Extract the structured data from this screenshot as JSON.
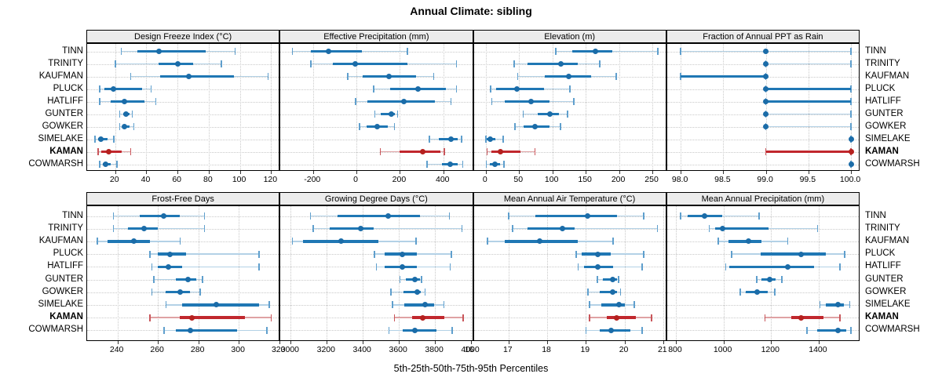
{
  "title": "Annual Climate: sibling",
  "footer": "5th-25th-50th-75th-95th Percentiles",
  "stations": [
    "TINN",
    "TRINITY",
    "KAUFMAN",
    "PLUCK",
    "HATLIFF",
    "GUNTER",
    "GOWKER",
    "SIMELAKE",
    "KAMAN",
    "COWMARSH"
  ],
  "highlight_station": "KAMAN",
  "colors": {
    "blue_main": "#1f77b4",
    "blue_cap": "#5f9fcd",
    "blue_light": "#b3d1e6",
    "blue_dot": "#1b6ca8",
    "red_main": "#c1272d",
    "red_cap": "#c9565b",
    "red_light": "#dfa2a4",
    "red_dot": "#b5211e",
    "strip_bg": "#ececec",
    "panel_border": "#000000",
    "grid": "#c9c9c9",
    "text": "#000000"
  },
  "chart_data": [
    {
      "type": "dotplot-percentiles",
      "title": "Design Freeze Index (°C)",
      "row": 0,
      "col": 0,
      "xlim": [
        2,
        126
      ],
      "ticks": [
        20,
        40,
        60,
        80,
        100,
        120
      ],
      "tick_labels": [
        "20",
        "40",
        "60",
        "80",
        "100",
        "120"
      ],
      "percentiles": [
        "5th",
        "25th",
        "50th",
        "75th",
        "95th"
      ],
      "values": [
        [
          24,
          34,
          48,
          78,
          97
        ],
        [
          20,
          48,
          60,
          70,
          88
        ],
        [
          30,
          49,
          67,
          96,
          118
        ],
        [
          10,
          13,
          19,
          37,
          43
        ],
        [
          10,
          17,
          26,
          39,
          46
        ],
        [
          23,
          25,
          27,
          29,
          31
        ],
        [
          23,
          25,
          26,
          29,
          32
        ],
        [
          7,
          9,
          11,
          15,
          19
        ],
        [
          9,
          11,
          16,
          24,
          30
        ],
        [
          10,
          12,
          14,
          17,
          21
        ]
      ]
    },
    {
      "type": "dotplot-percentiles",
      "title": "Effective Precipitation (mm)",
      "row": 0,
      "col": 1,
      "xlim": [
        -350,
        540
      ],
      "ticks": [
        -200,
        0,
        200,
        400
      ],
      "tick_labels": [
        "-200",
        "0",
        "200",
        "400"
      ],
      "percentiles": [
        "5th",
        "25th",
        "50th",
        "75th",
        "95th"
      ],
      "values": [
        [
          -295,
          -210,
          -130,
          25,
          235
        ],
        [
          -210,
          -110,
          -5,
          235,
          460
        ],
        [
          -40,
          30,
          150,
          275,
          355
        ],
        [
          80,
          155,
          285,
          410,
          460
        ],
        [
          -5,
          50,
          220,
          360,
          435
        ],
        [
          85,
          110,
          160,
          178,
          190
        ],
        [
          15,
          45,
          95,
          145,
          175
        ],
        [
          335,
          380,
          435,
          465,
          485
        ],
        [
          110,
          200,
          305,
          385,
          405
        ],
        [
          325,
          395,
          430,
          465,
          490
        ]
      ]
    },
    {
      "type": "dotplot-percentiles",
      "title": "Elevation (m)",
      "row": 0,
      "col": 2,
      "xlim": [
        -18,
        272
      ],
      "ticks": [
        0,
        50,
        100,
        150,
        200,
        250
      ],
      "tick_labels": [
        "0",
        "50",
        "100",
        "150",
        "200",
        "250"
      ],
      "percentiles": [
        "5th",
        "25th",
        "50th",
        "75th",
        "95th"
      ],
      "values": [
        [
          105,
          130,
          164,
          190,
          258
        ],
        [
          43,
          63,
          113,
          138,
          171
        ],
        [
          48,
          88,
          125,
          158,
          196
        ],
        [
          7,
          16,
          47,
          88,
          126
        ],
        [
          9,
          29,
          68,
          96,
          132
        ],
        [
          56,
          78,
          96,
          110,
          123
        ],
        [
          44,
          57,
          74,
          96,
          112
        ],
        [
          0,
          2,
          7,
          14,
          26
        ],
        [
          2,
          9,
          22,
          52,
          74
        ],
        [
          1,
          6,
          14,
          21,
          27
        ]
      ]
    },
    {
      "type": "dotplot-percentiles",
      "title": "Fraction of Annual PPT as Rain",
      "row": 0,
      "col": 3,
      "xlim": [
        97.84,
        100.11
      ],
      "ticks": [
        98.0,
        98.5,
        99.0,
        99.5,
        100.0
      ],
      "tick_labels": [
        "98.0",
        "98.5",
        "99.0",
        "99.5",
        "100.0"
      ],
      "percentiles": [
        "5th",
        "25th",
        "50th",
        "75th",
        "95th"
      ],
      "values": [
        [
          98.0,
          99.0,
          99.0,
          99.0,
          100.0
        ],
        [
          99.0,
          99.0,
          99.0,
          99.0,
          100.0
        ],
        [
          98.0,
          98.0,
          99.0,
          99.0,
          99.0
        ],
        [
          99.0,
          99.0,
          99.0,
          100.0,
          100.0
        ],
        [
          99.0,
          99.0,
          99.0,
          100.0,
          100.0
        ],
        [
          99.0,
          99.0,
          99.0,
          99.0,
          100.0
        ],
        [
          99.0,
          99.0,
          99.0,
          99.0,
          100.0
        ],
        [
          100.0,
          100.0,
          100.0,
          100.0,
          100.0
        ],
        [
          99.0,
          99.0,
          100.0,
          100.0,
          100.0
        ],
        [
          100.0,
          100.0,
          100.0,
          100.0,
          100.0
        ]
      ]
    },
    {
      "type": "dotplot-percentiles",
      "title": "Frost-Free Days",
      "row": 1,
      "col": 0,
      "xlim": [
        225,
        320.6
      ],
      "ticks": [
        240,
        260,
        280,
        300,
        320
      ],
      "tick_labels": [
        "240",
        "260",
        "280",
        "300",
        "320"
      ],
      "percentiles": [
        "5th",
        "25th",
        "50th",
        "75th",
        "95th"
      ],
      "values": [
        [
          238,
          251,
          263,
          271,
          283
        ],
        [
          238,
          245,
          253,
          260,
          283
        ],
        [
          230,
          235,
          248,
          256,
          271
        ],
        [
          256,
          260,
          266,
          274,
          310
        ],
        [
          257,
          260,
          265,
          272,
          310
        ],
        [
          258,
          269,
          275,
          279,
          282
        ],
        [
          257,
          264,
          271,
          276,
          281
        ],
        [
          264,
          272,
          289,
          310,
          315
        ],
        [
          256,
          271,
          277,
          303,
          316
        ],
        [
          263,
          269,
          276,
          299,
          314
        ]
      ]
    },
    {
      "type": "dotplot-percentiles",
      "title": "Growing Degree Days (°C)",
      "row": 1,
      "col": 1,
      "xlim": [
        2943,
        4015
      ],
      "ticks": [
        3000,
        3200,
        3400,
        3600,
        3800,
        4000
      ],
      "tick_labels": [
        "3000",
        "3200",
        "3400",
        "3600",
        "3800",
        "4000"
      ],
      "percentiles": [
        "5th",
        "25th",
        "50th",
        "75th",
        "95th"
      ],
      "values": [
        [
          3110,
          3260,
          3540,
          3715,
          3880
        ],
        [
          3125,
          3215,
          3390,
          3460,
          3950
        ],
        [
          3010,
          3070,
          3280,
          3485,
          3695
        ],
        [
          3465,
          3520,
          3620,
          3700,
          3890
        ],
        [
          3475,
          3520,
          3620,
          3700,
          3885
        ],
        [
          3605,
          3640,
          3690,
          3715,
          3725
        ],
        [
          3555,
          3625,
          3700,
          3720,
          3745
        ],
        [
          3565,
          3630,
          3745,
          3795,
          3850
        ],
        [
          3575,
          3675,
          3730,
          3850,
          3955
        ],
        [
          3545,
          3620,
          3690,
          3810,
          3895
        ]
      ]
    },
    {
      "type": "dotplot-percentiles",
      "title": "Mean Annual Air Temperature (°C)",
      "row": 1,
      "col": 2,
      "xlim": [
        16.1,
        21.1
      ],
      "ticks": [
        16,
        17,
        18,
        19,
        20,
        21
      ],
      "tick_labels": [
        "16",
        "17",
        "18",
        "19",
        "20",
        "21"
      ],
      "percentiles": [
        "5th",
        "25th",
        "50th",
        "75th",
        "95th"
      ],
      "values": [
        [
          17.0,
          17.7,
          19.05,
          19.8,
          20.5
        ],
        [
          17.1,
          17.5,
          18.4,
          18.7,
          20.85
        ],
        [
          16.45,
          16.9,
          17.8,
          18.8,
          19.7
        ],
        [
          18.75,
          18.9,
          19.3,
          19.65,
          20.5
        ],
        [
          18.8,
          18.95,
          19.3,
          19.7,
          20.45
        ],
        [
          19.3,
          19.45,
          19.7,
          19.8,
          19.85
        ],
        [
          19.05,
          19.35,
          19.7,
          19.8,
          19.9
        ],
        [
          19.1,
          19.4,
          19.85,
          20.0,
          20.25
        ],
        [
          19.1,
          19.55,
          19.8,
          20.3,
          20.7
        ],
        [
          19.0,
          19.35,
          19.65,
          20.15,
          20.45
        ]
      ]
    },
    {
      "type": "dotplot-percentiles",
      "title": "Mean Annual Precipitation (mm)",
      "row": 1,
      "col": 3,
      "xlim": [
        763,
        1575
      ],
      "ticks": [
        800,
        1000,
        1200,
        1400
      ],
      "tick_labels": [
        "800",
        "1000",
        "1200",
        "1400"
      ],
      "percentiles": [
        "5th",
        "25th",
        "50th",
        "75th",
        "95th"
      ],
      "values": [
        [
          820,
          850,
          920,
          995,
          1150
        ],
        [
          940,
          965,
          995,
          1190,
          1395
        ],
        [
          978,
          1020,
          1105,
          1160,
          1270
        ],
        [
          1035,
          1155,
          1325,
          1430,
          1510
        ],
        [
          1010,
          1025,
          1270,
          1380,
          1490
        ],
        [
          1140,
          1160,
          1195,
          1220,
          1245
        ],
        [
          1070,
          1095,
          1140,
          1185,
          1215
        ],
        [
          1405,
          1430,
          1480,
          1505,
          1530
        ],
        [
          1175,
          1285,
          1325,
          1420,
          1490
        ],
        [
          1350,
          1395,
          1480,
          1515,
          1535
        ]
      ]
    }
  ]
}
